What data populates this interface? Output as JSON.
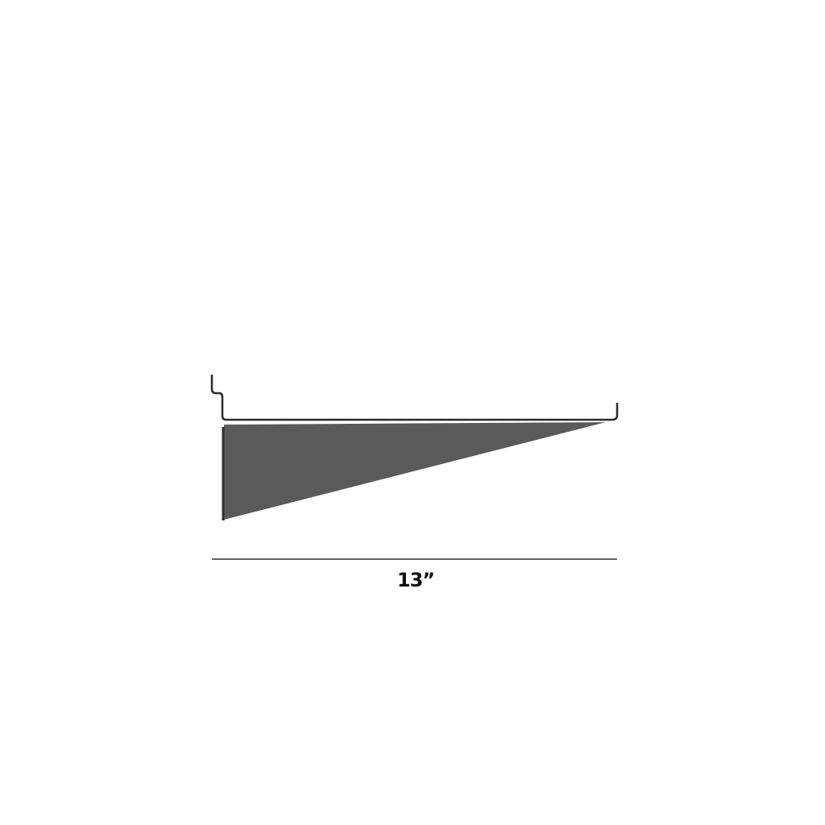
{
  "diagram": {
    "subject": "shelf-bracket",
    "dimension_label": "13”",
    "colors": {
      "bracket_fill": "#5a5a5a",
      "wire": "#2a2a2a",
      "dimension_line": "#333333"
    }
  }
}
